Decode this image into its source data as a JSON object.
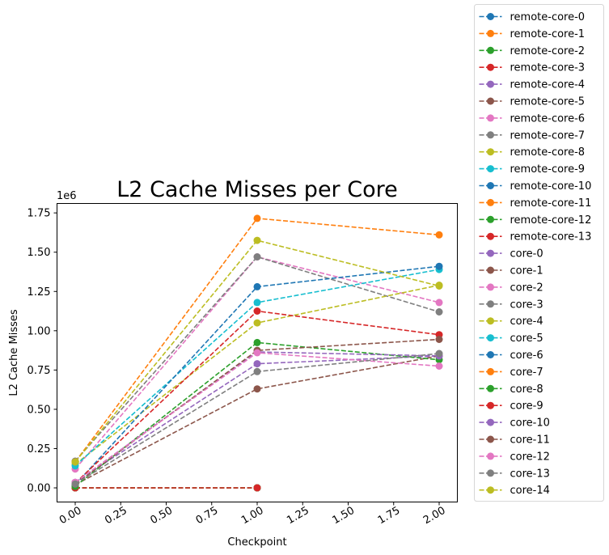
{
  "chart_data": {
    "type": "line",
    "title": "L2 Cache Misses per Core",
    "xlabel": "Checkpoint",
    "ylabel": "L2 Cache Misses",
    "y_offset_text": "1e6",
    "xlim": [
      -0.1,
      2.1
    ],
    "ylim": [
      -0.09,
      1.81
    ],
    "x_ticks": [
      "0.00",
      "0.25",
      "0.50",
      "0.75",
      "1.00",
      "1.25",
      "1.50",
      "1.75",
      "2.00"
    ],
    "y_ticks": [
      "0.00",
      "0.25",
      "0.50",
      "0.75",
      "1.00",
      "1.25",
      "1.50",
      "1.75"
    ],
    "x_tick_values": [
      0,
      0.25,
      0.5,
      0.75,
      1.0,
      1.25,
      1.5,
      1.75,
      2.0
    ],
    "y_tick_values": [
      0,
      0.25,
      0.5,
      0.75,
      1.0,
      1.25,
      1.5,
      1.75
    ],
    "grid": false,
    "legend_position": "outside-right",
    "series": [
      {
        "name": "remote-core-0",
        "color": "#1f77b4",
        "x": [
          0,
          1
        ],
        "y": [
          0.0,
          0.0
        ]
      },
      {
        "name": "remote-core-1",
        "color": "#ff7f0e",
        "x": [
          0,
          1
        ],
        "y": [
          0.0,
          0.0
        ]
      },
      {
        "name": "remote-core-2",
        "color": "#2ca02c",
        "x": [
          0,
          1
        ],
        "y": [
          0.0,
          0.0
        ]
      },
      {
        "name": "remote-core-3",
        "color": "#d62728",
        "x": [
          0,
          1
        ],
        "y": [
          0.0,
          0.0
        ]
      },
      {
        "name": "remote-core-4",
        "color": "#9467bd",
        "x": [
          0,
          1
        ],
        "y": [
          0.0,
          0.0
        ]
      },
      {
        "name": "remote-core-5",
        "color": "#8c564b",
        "x": [
          0,
          1
        ],
        "y": [
          0.0,
          0.0
        ]
      },
      {
        "name": "remote-core-6",
        "color": "#e377c2",
        "x": [
          0,
          1
        ],
        "y": [
          0.0,
          0.0
        ]
      },
      {
        "name": "remote-core-7",
        "color": "#7f7f7f",
        "x": [
          0,
          1
        ],
        "y": [
          0.0,
          0.0
        ]
      },
      {
        "name": "remote-core-8",
        "color": "#bcbd22",
        "x": [
          0,
          1
        ],
        "y": [
          0.0,
          0.0
        ]
      },
      {
        "name": "remote-core-9",
        "color": "#17becf",
        "x": [
          0,
          1
        ],
        "y": [
          0.0,
          0.0
        ]
      },
      {
        "name": "remote-core-10",
        "color": "#1f77b4",
        "x": [
          0,
          1
        ],
        "y": [
          0.0,
          0.0
        ]
      },
      {
        "name": "remote-core-11",
        "color": "#ff7f0e",
        "x": [
          0,
          1
        ],
        "y": [
          0.0,
          0.0
        ]
      },
      {
        "name": "remote-core-12",
        "color": "#2ca02c",
        "x": [
          0,
          1
        ],
        "y": [
          0.0,
          0.0
        ]
      },
      {
        "name": "remote-core-13",
        "color": "#d62728",
        "x": [
          0,
          1
        ],
        "y": [
          0.0,
          0.0
        ]
      },
      {
        "name": "core-0",
        "color": "#9467bd",
        "x": [
          0,
          1,
          2
        ],
        "y": [
          0.035,
          0.79,
          0.84
        ]
      },
      {
        "name": "core-1",
        "color": "#8c564b",
        "x": [
          0,
          1,
          2
        ],
        "y": [
          0.02,
          0.63,
          0.84
        ]
      },
      {
        "name": "core-2",
        "color": "#e377c2",
        "x": [
          0,
          1,
          2
        ],
        "y": [
          0.12,
          1.47,
          1.18
        ]
      },
      {
        "name": "core-3",
        "color": "#7f7f7f",
        "x": [
          0,
          1,
          2
        ],
        "y": [
          0.17,
          1.47,
          1.12
        ]
      },
      {
        "name": "core-4",
        "color": "#bcbd22",
        "x": [
          0,
          1,
          2
        ],
        "y": [
          0.15,
          1.05,
          1.29
        ]
      },
      {
        "name": "core-5",
        "color": "#17becf",
        "x": [
          0,
          1,
          2
        ],
        "y": [
          0.14,
          1.18,
          1.39
        ]
      },
      {
        "name": "core-6",
        "color": "#1f77b4",
        "x": [
          0,
          1,
          2
        ],
        "y": [
          0.02,
          1.28,
          1.41
        ]
      },
      {
        "name": "core-7",
        "color": "#ff7f0e",
        "x": [
          0,
          1,
          2
        ],
        "y": [
          0.165,
          1.715,
          1.61
        ]
      },
      {
        "name": "core-8",
        "color": "#2ca02c",
        "x": [
          0,
          1,
          2
        ],
        "y": [
          0.01,
          0.925,
          0.815
        ]
      },
      {
        "name": "core-9",
        "color": "#d62728",
        "x": [
          0,
          1,
          2
        ],
        "y": [
          0.03,
          1.125,
          0.975
        ]
      },
      {
        "name": "core-10",
        "color": "#9467bd",
        "x": [
          0,
          1,
          2
        ],
        "y": [
          0.035,
          0.865,
          0.84
        ]
      },
      {
        "name": "core-11",
        "color": "#8c564b",
        "x": [
          0,
          1,
          2
        ],
        "y": [
          0.025,
          0.875,
          0.945
        ]
      },
      {
        "name": "core-12",
        "color": "#e377c2",
        "x": [
          0,
          1,
          2
        ],
        "y": [
          0.035,
          0.86,
          0.775
        ]
      },
      {
        "name": "core-13",
        "color": "#7f7f7f",
        "x": [
          0,
          1,
          2
        ],
        "y": [
          0.025,
          0.74,
          0.855
        ]
      },
      {
        "name": "core-14",
        "color": "#bcbd22",
        "x": [
          0,
          1,
          2
        ],
        "y": [
          0.165,
          1.575,
          1.285
        ]
      }
    ]
  }
}
